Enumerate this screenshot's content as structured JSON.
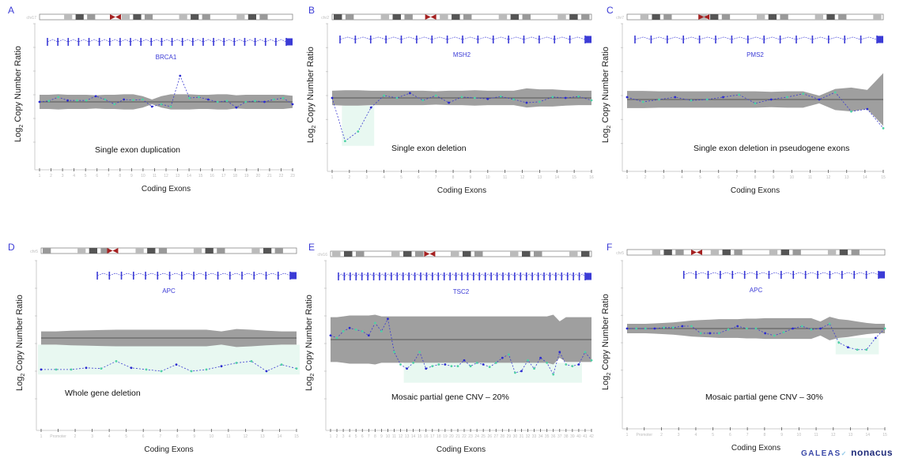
{
  "figure": {
    "y_axis_label": "Log2 Copy Number Ratio",
    "x_axis_label": "Coding Exons"
  },
  "logo": {
    "part1": "GALEAS",
    "sep": "✓",
    "part2": "nonacus"
  },
  "colors": {
    "gene": "#3b3bd6",
    "band": "#9a9a9a",
    "ref_line": "#555555",
    "point_green": "#4fd1a5",
    "point_blue": "#2a2ad0",
    "deletion_shade": "#d8f3e8",
    "centromere": "#a52020"
  },
  "chart_data": [
    {
      "type": "line",
      "panel": "A",
      "chromosome": "chr17",
      "gene": "BRCA1",
      "annotation": "Single exon duplication",
      "xlabel": "Coding Exons",
      "ylabel": "Log2 Copy Number Ratio",
      "ylim": [
        -1.5,
        1.5
      ],
      "x_tick_labels": [
        "1",
        "2",
        "3",
        "4",
        "5",
        "6",
        "7",
        "8",
        "9",
        "10",
        "11",
        "12",
        "13",
        "14",
        "15",
        "16",
        "17",
        "18",
        "19",
        "20",
        "21",
        "22",
        "23"
      ],
      "points": [
        0,
        0.02,
        0.1,
        0.03,
        0.03,
        0.03,
        0.12,
        0.05,
        -0.05,
        0.05,
        0.04,
        0.05,
        -0.1,
        -0.05,
        -0.1,
        0.55,
        0.08,
        0.1,
        0.05,
        0.0,
        0.02,
        -0.12,
        0.0,
        0.02,
        0.0,
        0.05,
        0.08,
        -0.05
      ],
      "band_halfwidth": [
        0.15,
        0.15,
        0.16,
        0.15,
        0.15,
        0.15,
        0.14,
        0.15,
        0.15,
        0.16,
        0.16,
        0.12,
        0.05,
        0.12,
        0.16,
        0.16,
        0.16,
        0.15,
        0.15,
        0.16,
        0.16,
        0.14,
        0.15,
        0.15,
        0.15,
        0.15,
        0.15,
        0.13
      ]
    },
    {
      "type": "line",
      "panel": "B",
      "chromosome": "chr2",
      "gene": "MSH2",
      "annotation": "Single exon deletion",
      "xlabel": "Coding Exons",
      "ylabel": "Log2 Copy Number Ratio",
      "ylim": [
        -1.5,
        1.5
      ],
      "x_tick_labels": [
        "1",
        "2",
        "3",
        "4",
        "5",
        "6",
        "7",
        "8",
        "9",
        "10",
        "11",
        "12",
        "13",
        "14",
        "15",
        "16"
      ],
      "points": [
        0,
        -0.9,
        -0.7,
        -0.2,
        0.05,
        0.0,
        0.1,
        -0.05,
        0.05,
        -0.1,
        0.02,
        0.0,
        -0.02,
        0.03,
        -0.03,
        -0.1,
        -0.08,
        0.02,
        0.0,
        0.03,
        -0.05
      ],
      "band_halfwidth": [
        0.15,
        0.16,
        0.16,
        0.15,
        0.15,
        0.15,
        0.15,
        0.15,
        0.14,
        0.15,
        0.15,
        0.16,
        0.15,
        0.15,
        0.15,
        0.2,
        0.18,
        0.18,
        0.16,
        0.15,
        0.15
      ]
    },
    {
      "type": "line",
      "panel": "C",
      "chromosome": "chr7",
      "gene": "PMS2",
      "annotation": "Single exon deletion in pseudogene exons",
      "xlabel": "Coding Exons",
      "ylabel": "Log2 Copy Number Ratio",
      "ylim": [
        -1.5,
        1.5
      ],
      "x_tick_labels": [
        "1",
        "2",
        "3",
        "4",
        "5",
        "6",
        "7",
        "8",
        "9",
        "10",
        "11",
        "12",
        "13",
        "14",
        "15"
      ],
      "points": [
        0.05,
        -0.05,
        0.0,
        0.05,
        -0.02,
        0.0,
        0.05,
        0.1,
        -0.08,
        0.0,
        0.05,
        0.12,
        0.0,
        0.15,
        -0.25,
        -0.2,
        -0.6
      ],
      "band_halfwidth": [
        0.18,
        0.18,
        0.17,
        0.17,
        0.17,
        0.17,
        0.17,
        0.17,
        0.17,
        0.16,
        0.17,
        0.17,
        0.08,
        0.22,
        0.25,
        0.2,
        0.55
      ]
    },
    {
      "type": "line",
      "panel": "D",
      "chromosome": "chr5",
      "gene": "APC",
      "annotation": "Whole gene deletion",
      "xlabel": "Coding Exons",
      "ylabel": "Log2 Copy Number Ratio",
      "ylim": [
        -2.5,
        2.5
      ],
      "x_tick_labels": [
        "1",
        "Promoter",
        "2",
        "3",
        "4",
        "5",
        "6",
        "7",
        "8",
        "9",
        "10",
        "11",
        "12",
        "13",
        "14",
        "15"
      ],
      "points": [
        -0.95,
        -0.95,
        -0.95,
        -0.9,
        -0.92,
        -0.7,
        -0.9,
        -0.95,
        -1.0,
        -0.8,
        -1.0,
        -0.95,
        -0.85,
        -0.75,
        -0.7,
        -1.0,
        -0.8,
        -0.92
      ],
      "band_halfwidth": [
        0.2,
        0.2,
        0.22,
        0.23,
        0.24,
        0.25,
        0.25,
        0.25,
        0.25,
        0.25,
        0.25,
        0.25,
        0.2,
        0.27,
        0.25,
        0.22,
        0.2,
        0.2
      ]
    },
    {
      "type": "line",
      "panel": "E",
      "chromosome": "chr16",
      "gene": "TSC2",
      "annotation": "Mosaic partial gene CNV – 20%",
      "xlabel": "Coding Exons",
      "ylabel": "Log2 Copy Number Ratio",
      "ylim": [
        -1.0,
        1.0
      ],
      "x_tick_labels": [
        "1",
        "2",
        "3",
        "4",
        "5",
        "6",
        "7",
        "8",
        "9",
        "10",
        "11",
        "12",
        "13",
        "14",
        "15",
        "16",
        "17",
        "18",
        "19",
        "20",
        "21",
        "22",
        "23",
        "24",
        "25",
        "26",
        "27",
        "28",
        "29",
        "30",
        "31",
        "32",
        "33",
        "34",
        "35",
        "36",
        "37",
        "38",
        "39",
        "40",
        "41",
        "42"
      ],
      "points": [
        0.05,
        0.02,
        0.1,
        0.14,
        0.12,
        0.1,
        0.05,
        0.2,
        0.1,
        0.25,
        -0.15,
        -0.3,
        -0.35,
        -0.28,
        -0.15,
        -0.35,
        -0.32,
        -0.3,
        -0.3,
        -0.32,
        -0.32,
        -0.25,
        -0.32,
        -0.28,
        -0.3,
        -0.33,
        -0.28,
        -0.22,
        -0.18,
        -0.4,
        -0.38,
        -0.25,
        -0.35,
        -0.22,
        -0.28,
        -0.42,
        -0.15,
        -0.3,
        -0.32,
        -0.3,
        -0.15,
        -0.25
      ],
      "band_halfwidth": [
        0.27,
        0.27,
        0.28,
        0.29,
        0.29,
        0.29,
        0.29,
        0.3,
        0.28,
        0.28,
        0.28,
        0.28,
        0.28,
        0.28,
        0.28,
        0.28,
        0.28,
        0.28,
        0.28,
        0.28,
        0.28,
        0.28,
        0.28,
        0.28,
        0.28,
        0.28,
        0.28,
        0.28,
        0.28,
        0.28,
        0.28,
        0.28,
        0.28,
        0.28,
        0.28,
        0.3,
        0.22,
        0.27,
        0.27,
        0.27,
        0.27,
        0.27
      ]
    },
    {
      "type": "line",
      "panel": "F",
      "chromosome": "chr5",
      "gene": "APC",
      "annotation": "Mosaic partial gene CNV – 30%",
      "xlabel": "Coding Exons",
      "ylabel": "Log2 Copy Number Ratio",
      "ylim": [
        -2.5,
        1.0
      ],
      "x_tick_labels": [
        "1",
        "Promoter",
        "2",
        "3",
        "4",
        "5",
        "6",
        "7",
        "8",
        "9",
        "10",
        "11",
        "12",
        "13",
        "14",
        "15"
      ],
      "points": [
        0,
        0,
        0,
        0,
        0.02,
        0.02,
        0.05,
        0.05,
        -0.1,
        -0.1,
        -0.1,
        -0.02,
        0.05,
        0.0,
        0.0,
        -0.1,
        -0.15,
        -0.08,
        0.0,
        0.05,
        -0.02,
        0.0,
        0.1,
        -0.3,
        -0.4,
        -0.45,
        -0.45,
        -0.2,
        0.0
      ],
      "band_halfwidth": [
        0.1,
        0.1,
        0.1,
        0.11,
        0.12,
        0.13,
        0.15,
        0.17,
        0.18,
        0.19,
        0.2,
        0.2,
        0.2,
        0.21,
        0.21,
        0.22,
        0.22,
        0.22,
        0.22,
        0.22,
        0.22,
        0.15,
        0.25,
        0.2,
        0.18,
        0.15,
        0.12,
        0.1,
        0.1
      ]
    }
  ]
}
